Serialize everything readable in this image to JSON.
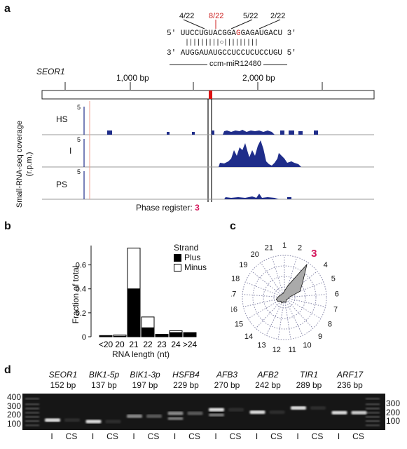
{
  "panel_labels": {
    "a": "a",
    "b": "b",
    "c": "c",
    "d": "d"
  },
  "panel_a": {
    "mismatch_counts": [
      "4/22",
      "8/22",
      "5/22",
      "2/22"
    ],
    "mismatch_colors": [
      "#222222",
      "#cc2222",
      "#222222",
      "#222222"
    ],
    "target_prefix": "5′ UUCCUGUACGGA",
    "target_highlight": "G",
    "target_suffix": "GAGAUGACU 3′",
    "pairing": "|||||||||○|||||||||",
    "mirna_seq": "3′ AUGGAUAUGCCUCCUCUCCUGU 5′",
    "mirna_name": "ccm-miR12480",
    "gene_name": "SEOR1",
    "ruler_ticks": [
      "1,000 bp",
      "2,000 bp"
    ],
    "ylabel_line1": "Small-RNA-seq coverage",
    "ylabel_line2": "(r.p.m.)",
    "track_scale": "5",
    "tracks": [
      "HS",
      "I",
      "PS"
    ],
    "phase_label": "Phase register:",
    "phase_value": "3",
    "highlight_color": "#d4145a",
    "coverage_color": "#1f2d8a"
  },
  "chart_data": [
    {
      "type": "bar",
      "categories": [
        "<20",
        "20",
        "21",
        "22",
        "23",
        "24",
        ">24"
      ],
      "series": [
        {
          "name": "Plus",
          "values": [
            0.005,
            0.005,
            0.4,
            0.075,
            0.015,
            0.035,
            0.035
          ]
        },
        {
          "name": "Minus",
          "values": [
            0.005,
            0.01,
            0.34,
            0.09,
            0.005,
            0.015,
            0.0
          ]
        }
      ],
      "stacked": true,
      "xlabel": "RNA length (nt)",
      "ylabel": "Fraction of total",
      "yticks": [
        "0",
        "0.2",
        "0.4",
        "0.6"
      ],
      "ylim": [
        0,
        0.75
      ],
      "legend_title": "Strand",
      "legend_position": "top-right"
    },
    {
      "type": "radar",
      "categories": [
        "1",
        "2",
        "3",
        "4",
        "5",
        "6",
        "7",
        "8",
        "9",
        "10",
        "11",
        "12",
        "13",
        "14",
        "15",
        "16",
        "17",
        "18",
        "19",
        "20",
        "21"
      ],
      "values": [
        0.15,
        0.3,
        0.95,
        0.55,
        0.4,
        0.12,
        0.1,
        0.08,
        0.07,
        0.1,
        0.12,
        0.1,
        0.15,
        0.12,
        0.18,
        0.2,
        0.15,
        0.12,
        0.1,
        0.1,
        0.1
      ],
      "highlight_category": "3",
      "fill_color": "#aaaaaa"
    }
  ],
  "panel_d": {
    "genes": [
      {
        "name": "SEOR1",
        "size": "152 bp"
      },
      {
        "name": "BIK1-5p",
        "size": "137 bp"
      },
      {
        "name": "BIK1-3p",
        "size": "197 bp"
      },
      {
        "name": "HSFB4",
        "size": "229 bp"
      },
      {
        "name": "AFB3",
        "size": "270 bp"
      },
      {
        "name": "AFB2",
        "size": "242 bp"
      },
      {
        "name": "TIR1",
        "size": "289 bp"
      },
      {
        "name": "ARF17",
        "size": "236 bp"
      }
    ],
    "marker_labels": [
      "400",
      "300",
      "200",
      "100"
    ],
    "lane_labels": [
      "I",
      "CS"
    ]
  }
}
